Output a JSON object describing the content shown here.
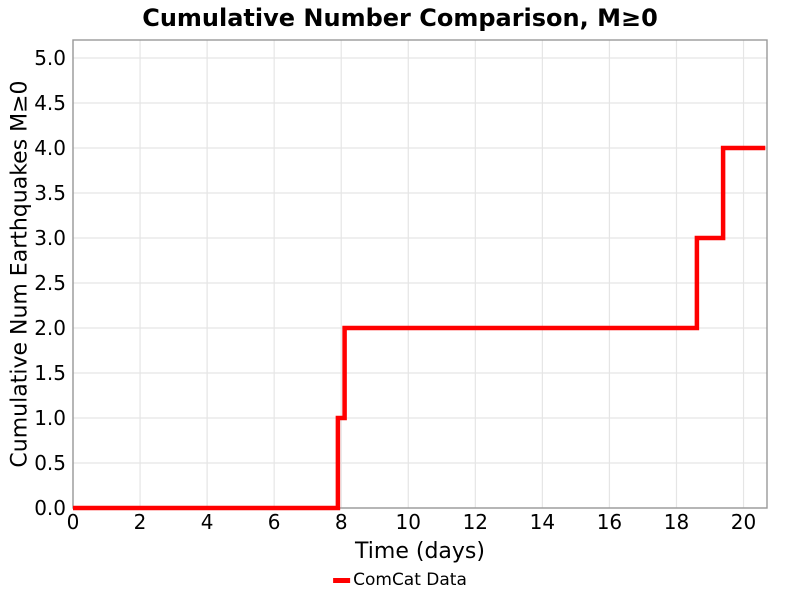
{
  "chart_data": {
    "type": "line",
    "subtype": "step-cumulative",
    "title": "Cumulative Number Comparison, M≥0",
    "xlabel": "Time (days)",
    "ylabel": "Cumulative Num Earthquakes M≥0",
    "legend": [
      "ComCat Data"
    ],
    "legend_position": "bottom-center",
    "grid": true,
    "xlim": [
      0,
      20.7
    ],
    "ylim": [
      0,
      5.2
    ],
    "x_ticks": [
      0,
      2,
      4,
      6,
      8,
      10,
      12,
      14,
      16,
      18,
      20
    ],
    "x_tick_labels": [
      "0",
      "2",
      "4",
      "6",
      "8",
      "10",
      "12",
      "14",
      "16",
      "18",
      "20"
    ],
    "y_ticks": [
      0,
      0.5,
      1,
      1.5,
      2,
      2.5,
      3,
      3.5,
      4,
      4.5,
      5
    ],
    "y_tick_labels": [
      "0.0",
      "0.5",
      "1.0",
      "1.5",
      "2.0",
      "2.5",
      "3.0",
      "3.5",
      "4.0",
      "4.5",
      "5.0"
    ],
    "colors": {
      "line": "#ff0000",
      "grid": "#e5e5e5",
      "border": "#999999",
      "background": "#ffffff",
      "text": "#000000"
    },
    "series": [
      {
        "name": "ComCat Data",
        "color": "#ff0000",
        "event_times_days": [
          7.9,
          8.1,
          18.61,
          19.39
        ],
        "x": [
          0,
          7.9,
          7.9,
          8.1,
          8.1,
          18.61,
          18.61,
          19.39,
          19.39,
          20.65
        ],
        "y": [
          0,
          0,
          1,
          1,
          2,
          2,
          3,
          3,
          4,
          4
        ]
      }
    ]
  }
}
